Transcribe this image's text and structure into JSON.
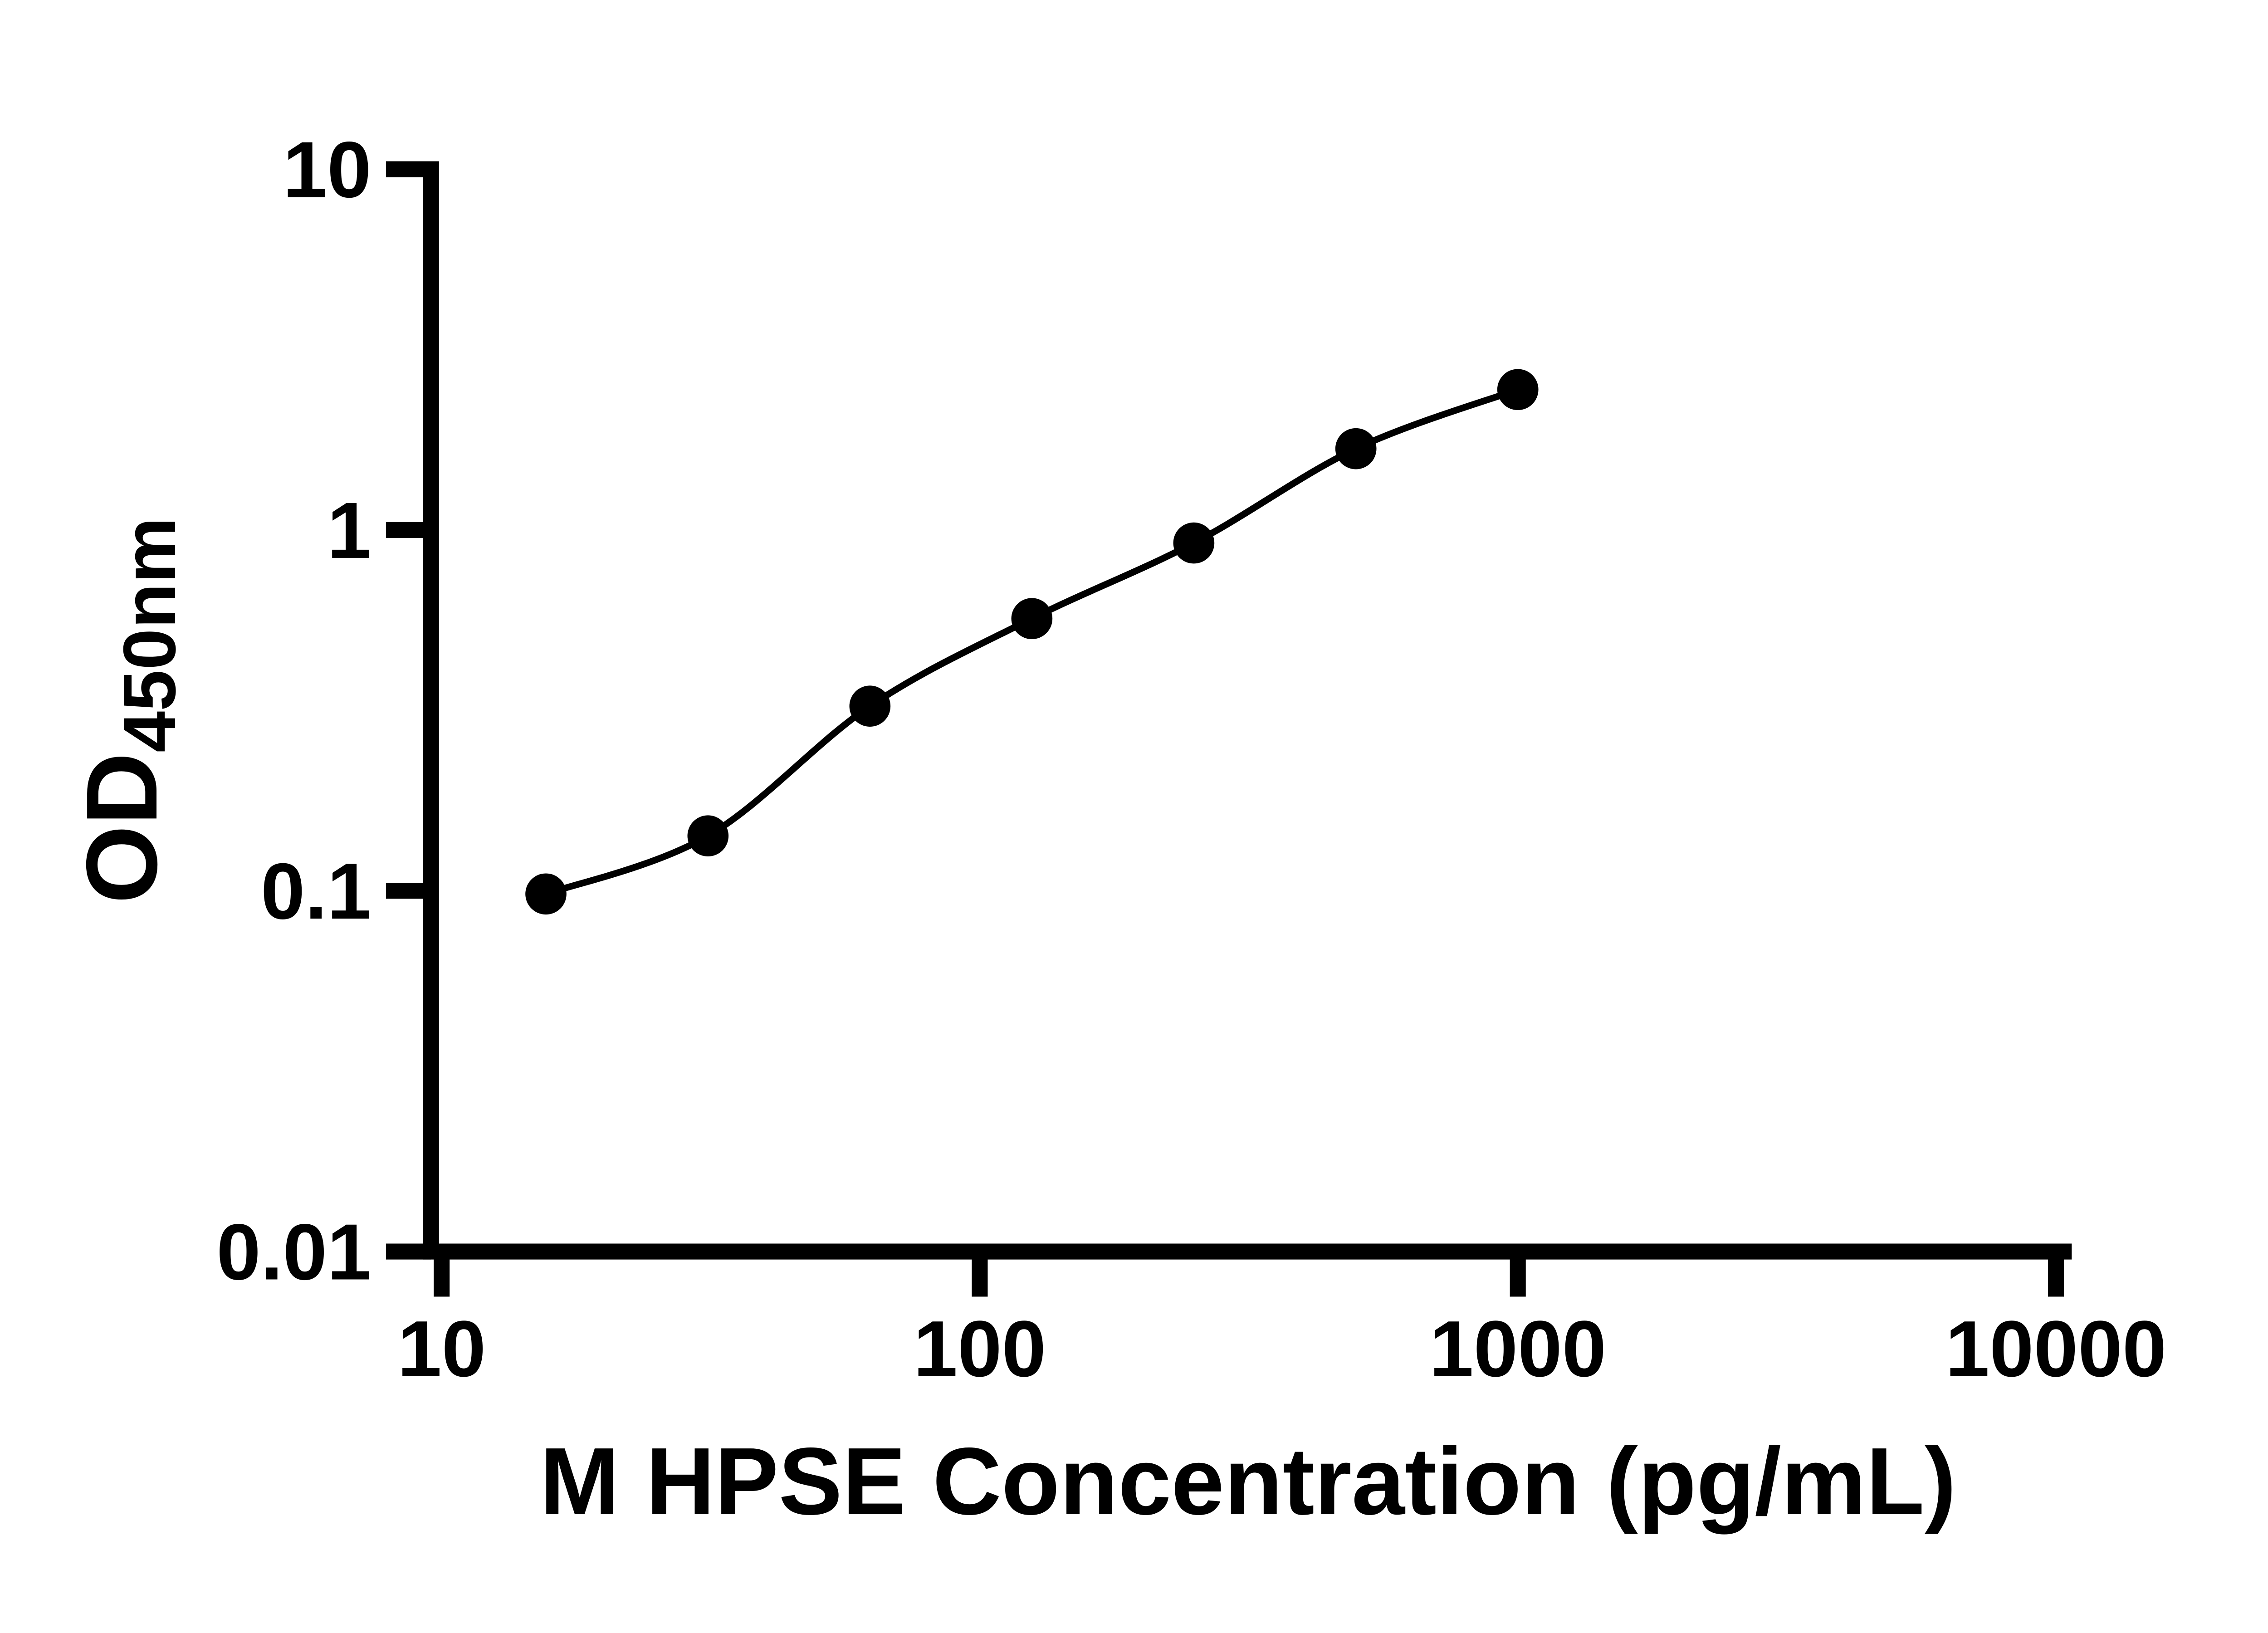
{
  "chart_data": {
    "type": "scatter",
    "title": "",
    "xlabel": "M HPSE Concentration (pg/mL)",
    "ylabel": "OD",
    "ylabel_sub": "450nm",
    "x_scale": "log10",
    "y_scale": "log10",
    "xlim": [
      10,
      10000
    ],
    "ylim": [
      0.01,
      10
    ],
    "x_ticks": [
      10,
      100,
      1000,
      10000
    ],
    "x_tick_labels": [
      "10",
      "100",
      "1000",
      "10000"
    ],
    "y_ticks": [
      10,
      1,
      0.1,
      0.01
    ],
    "y_tick_labels": [
      "10",
      "1",
      "0.1",
      "0.01"
    ],
    "grid": false,
    "legend": "none",
    "series": [
      {
        "x": [
          15.625,
          31.25,
          62.5,
          125,
          250,
          500,
          1000
        ],
        "y": [
          0.098,
          0.142,
          0.325,
          0.568,
          0.92,
          1.68,
          2.45
        ]
      }
    ],
    "marker_shape": "filled-circle",
    "marker_color": "#000000",
    "line_color": "#000000",
    "axis_color": "#000000",
    "background": "#ffffff"
  }
}
